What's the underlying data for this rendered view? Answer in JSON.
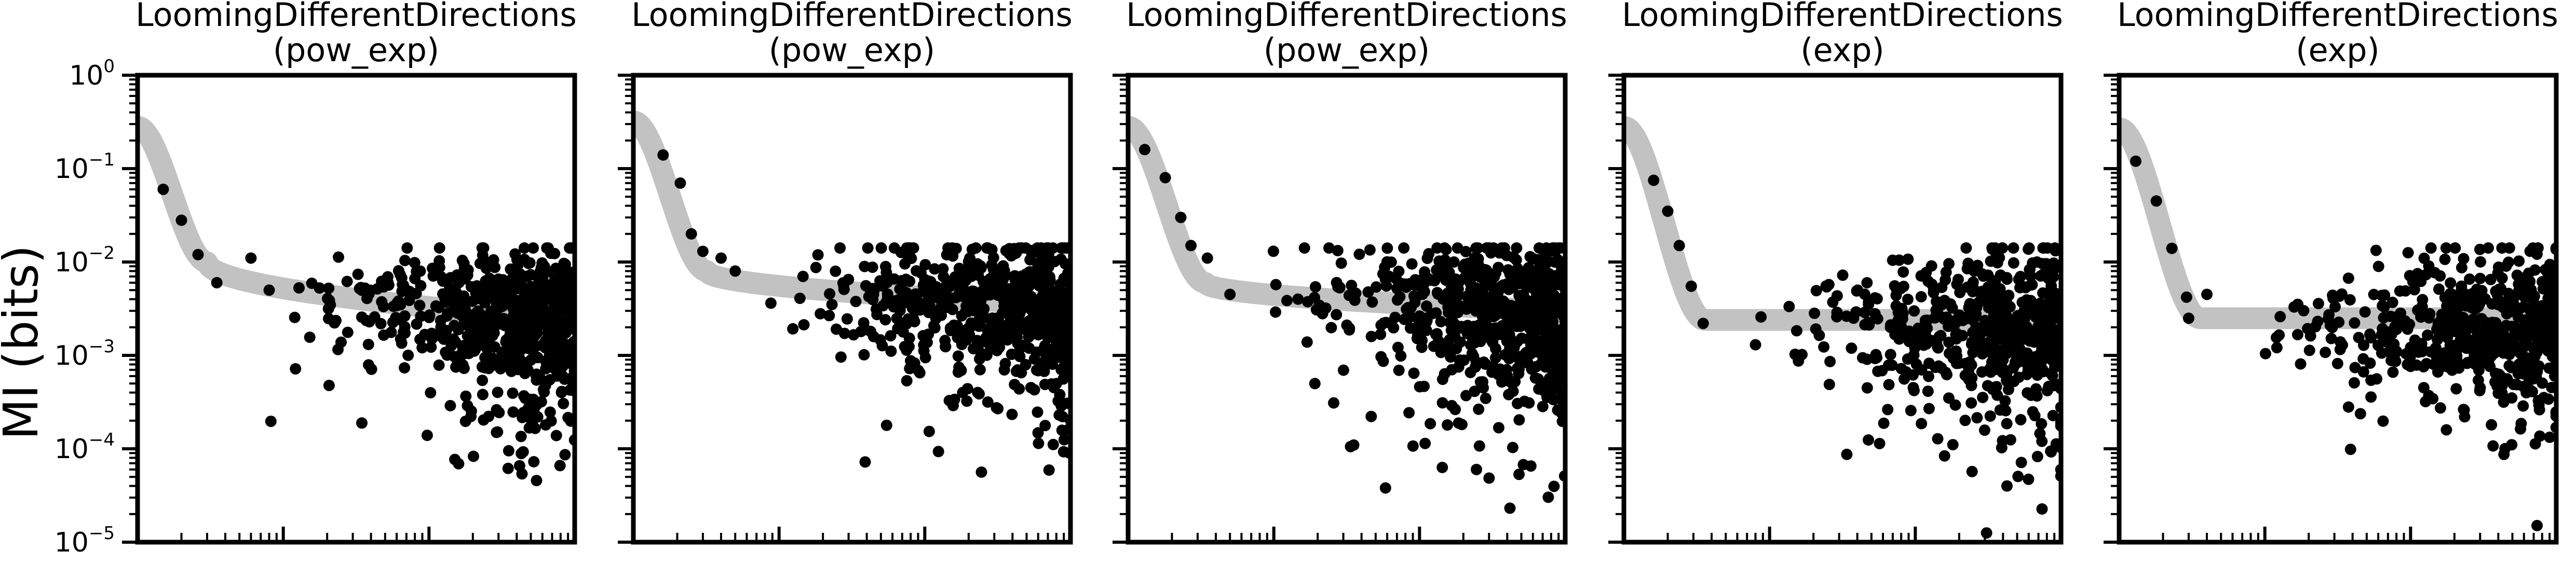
{
  "figure": {
    "ylabel": "MI (bits)",
    "yticks": [
      "10",
      "10",
      "10",
      "10",
      "10",
      "10"
    ],
    "ytick_exponents": [
      "0",
      "−1",
      "−2",
      "−3",
      "−4",
      "−5"
    ]
  },
  "chart_data": [
    {
      "type": "scatter",
      "title": "LoomingDifferentDirections",
      "subtitle": "(pow_exp)",
      "ylabel": "MI (bits)",
      "yscale": "log",
      "ylim": [
        1e-05,
        1
      ],
      "xscale": "log",
      "xlim": [
        1,
        1000
      ],
      "fit_curve": {
        "kind": "pow_exp",
        "color": "#c2c2c2",
        "x_start": 1,
        "y_start": 0.28,
        "x_knee": 3,
        "y_knee": 0.01,
        "y_floor": 0.0024
      },
      "seed": 11,
      "n_points": 650,
      "seed_points": [
        [
          1.5,
          0.06
        ],
        [
          2,
          0.028
        ],
        [
          2.6,
          0.012
        ],
        [
          3.5,
          0.006
        ],
        [
          6,
          0.011
        ],
        [
          8,
          0.005
        ]
      ]
    },
    {
      "type": "scatter",
      "title": "LoomingDifferentDirections",
      "subtitle": "(pow_exp)",
      "yscale": "log",
      "ylim": [
        1e-05,
        1
      ],
      "xscale": "log",
      "xlim": [
        1,
        1000
      ],
      "fit_curve": {
        "kind": "pow_exp",
        "color": "#c2c2c2",
        "x_start": 1,
        "y_start": 0.32,
        "x_knee": 3.2,
        "y_knee": 0.008,
        "y_floor": 0.0035
      },
      "seed": 29,
      "n_points": 650,
      "seed_points": [
        [
          1.6,
          0.14
        ],
        [
          2.1,
          0.07
        ],
        [
          2.5,
          0.02
        ],
        [
          3,
          0.013
        ],
        [
          4,
          0.011
        ],
        [
          5,
          0.008
        ]
      ]
    },
    {
      "type": "scatter",
      "title": "LoomingDifferentDirections",
      "subtitle": "(pow_exp)",
      "yscale": "log",
      "ylim": [
        1e-05,
        1
      ],
      "xscale": "log",
      "xlim": [
        1,
        1000
      ],
      "fit_curve": {
        "kind": "pow_exp",
        "color": "#c2c2c2",
        "x_start": 1,
        "y_start": 0.28,
        "x_knee": 3.4,
        "y_knee": 0.006,
        "y_floor": 0.003
      },
      "seed": 47,
      "n_points": 650,
      "seed_points": [
        [
          1.3,
          0.16
        ],
        [
          1.8,
          0.08
        ],
        [
          2.3,
          0.03
        ],
        [
          2.7,
          0.015
        ],
        [
          3.5,
          0.011
        ],
        [
          5,
          0.0045
        ]
      ]
    },
    {
      "type": "scatter",
      "title": "LoomingDifferentDirections",
      "subtitle": "(exp)",
      "yscale": "log",
      "ylim": [
        1e-05,
        1
      ],
      "xscale": "log",
      "xlim": [
        1,
        1000
      ],
      "fit_curve": {
        "kind": "exp",
        "color": "#c2c2c2",
        "x_start": 1,
        "y_start": 0.28,
        "x_knee": 3.6,
        "y_knee": 0.0024,
        "y_floor": 0.0024
      },
      "seed": 63,
      "n_points": 560,
      "seed_points": [
        [
          1.6,
          0.075
        ],
        [
          2,
          0.035
        ],
        [
          2.4,
          0.015
        ],
        [
          2.9,
          0.0055
        ],
        [
          3.5,
          0.0022
        ],
        [
          8,
          0.0013
        ]
      ]
    },
    {
      "type": "scatter",
      "title": "LoomingDifferentDirections",
      "subtitle": "(exp)",
      "yscale": "log",
      "ylim": [
        1e-05,
        1
      ],
      "xscale": "log",
      "xlim": [
        1,
        1000
      ],
      "fit_curve": {
        "kind": "exp",
        "color": "#c2c2c2",
        "x_start": 1,
        "y_start": 0.27,
        "x_knee": 3.6,
        "y_knee": 0.0025,
        "y_floor": 0.0025
      },
      "seed": 81,
      "n_points": 560,
      "seed_points": [
        [
          1.3,
          0.12
        ],
        [
          1.8,
          0.045
        ],
        [
          2.3,
          0.014
        ],
        [
          2.9,
          0.0042
        ],
        [
          3,
          0.0025
        ],
        [
          4,
          0.0045
        ]
      ]
    }
  ]
}
